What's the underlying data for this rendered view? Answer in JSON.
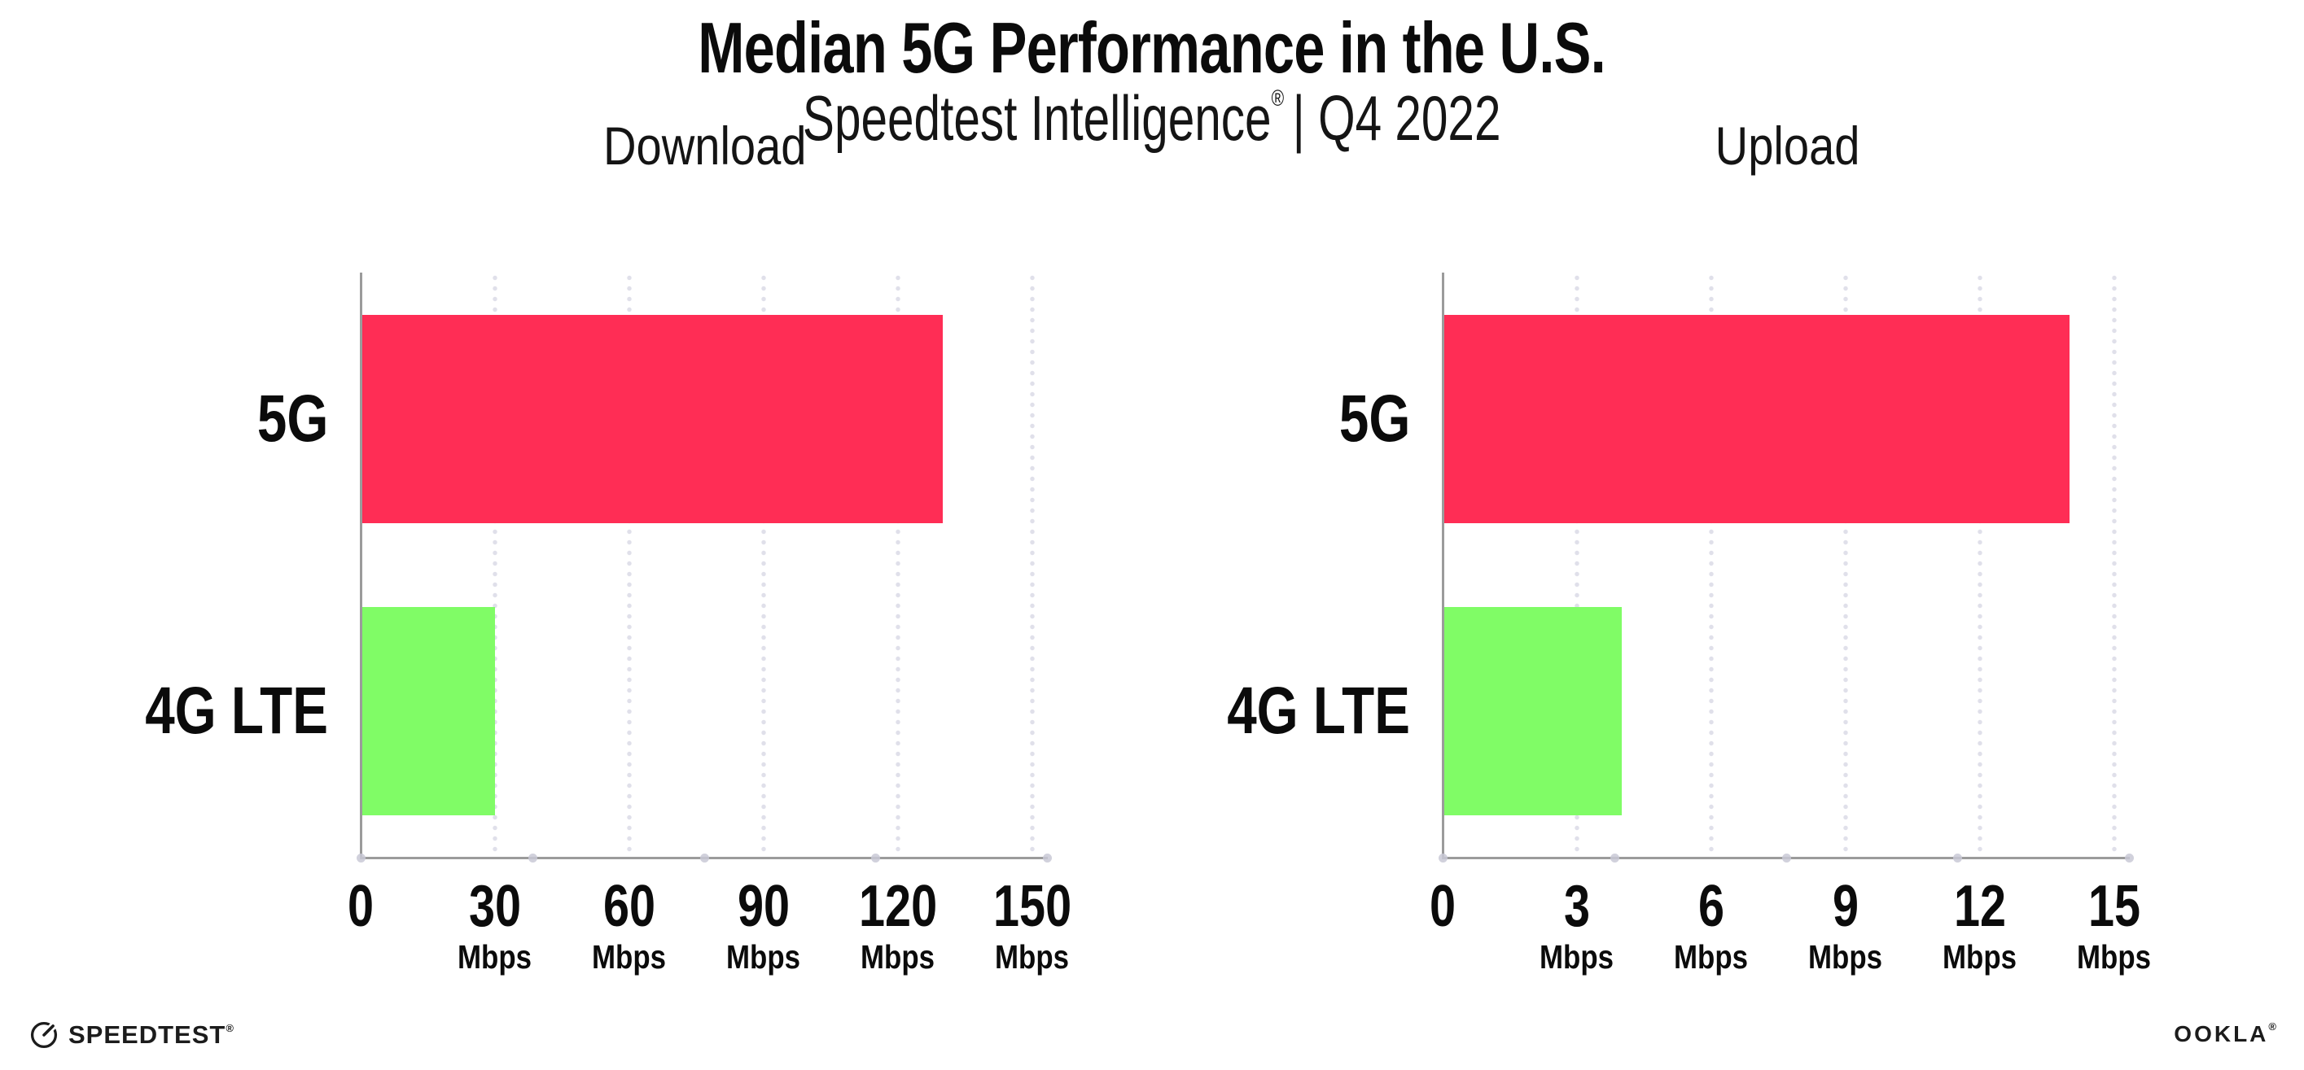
{
  "header": {
    "title": "Median 5G Performance in the U.S.",
    "subtitle_brand": "Speedtest Intelligence",
    "subtitle_reg": "®",
    "subtitle_rest": "| Q4 2022"
  },
  "chart_data": [
    {
      "type": "bar",
      "orientation": "horizontal",
      "title": "Download",
      "categories": [
        "5G",
        "4G LTE"
      ],
      "values": [
        130,
        30
      ],
      "unit": "Mbps",
      "xlim": [
        0,
        150
      ],
      "xticks": [
        0,
        30,
        60,
        90,
        120,
        150
      ],
      "bar_colors": [
        "#ff2d55",
        "#80fc66"
      ],
      "grid": "dotted-vertical-gridlines",
      "legend": "none"
    },
    {
      "type": "bar",
      "orientation": "horizontal",
      "title": "Upload",
      "categories": [
        "5G",
        "4G LTE"
      ],
      "values": [
        14,
        4
      ],
      "unit": "Mbps",
      "xlim": [
        0,
        15
      ],
      "xticks": [
        0,
        3,
        6,
        9,
        12,
        15
      ],
      "bar_colors": [
        "#ff2d55",
        "#80fc66"
      ],
      "grid": "dotted-vertical-gridlines",
      "legend": "none"
    }
  ],
  "footer": {
    "speedtest_label": "SPEEDTEST",
    "speedtest_mark": "®",
    "ookla_label": "OOKLA",
    "ookla_mark": "®"
  },
  "colors": {
    "bar_5g": "#ff2d55",
    "bar_4g_lte": "#80fc66",
    "axis": "#9b9b9b",
    "gridline_dot": "#e0e0ea"
  }
}
